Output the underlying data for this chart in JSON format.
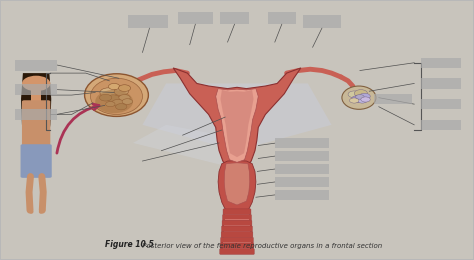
{
  "bg_color": "#b8b8b8",
  "page_color": "#c8c4bc",
  "title_text": "Figure 10.5",
  "caption_text": " Posterior view of the female reproductive organs in a frontal section",
  "fig_width": 4.74,
  "fig_height": 2.6,
  "dpi": 100,
  "uterus_outer_color": "#c96055",
  "uterus_inner_color": "#d47870",
  "uterus_cavity_color": "#e8a090",
  "cervix_color": "#c05048",
  "vagina_stripe_dark": "#b84840",
  "vagina_stripe_light": "#d07068",
  "tube_color": "#c96055",
  "ligament_color": "#c8ccd8",
  "left_ovary_color": "#d4a878",
  "left_ovary_inner": "#b88050",
  "right_ovary_color": "#c8b8a0",
  "arrow_color": "#aa3355",
  "label_color": "#aaaaaa",
  "label_alpha": 0.7,
  "caption_fontsize": 5.0,
  "title_fontsize": 5.5
}
